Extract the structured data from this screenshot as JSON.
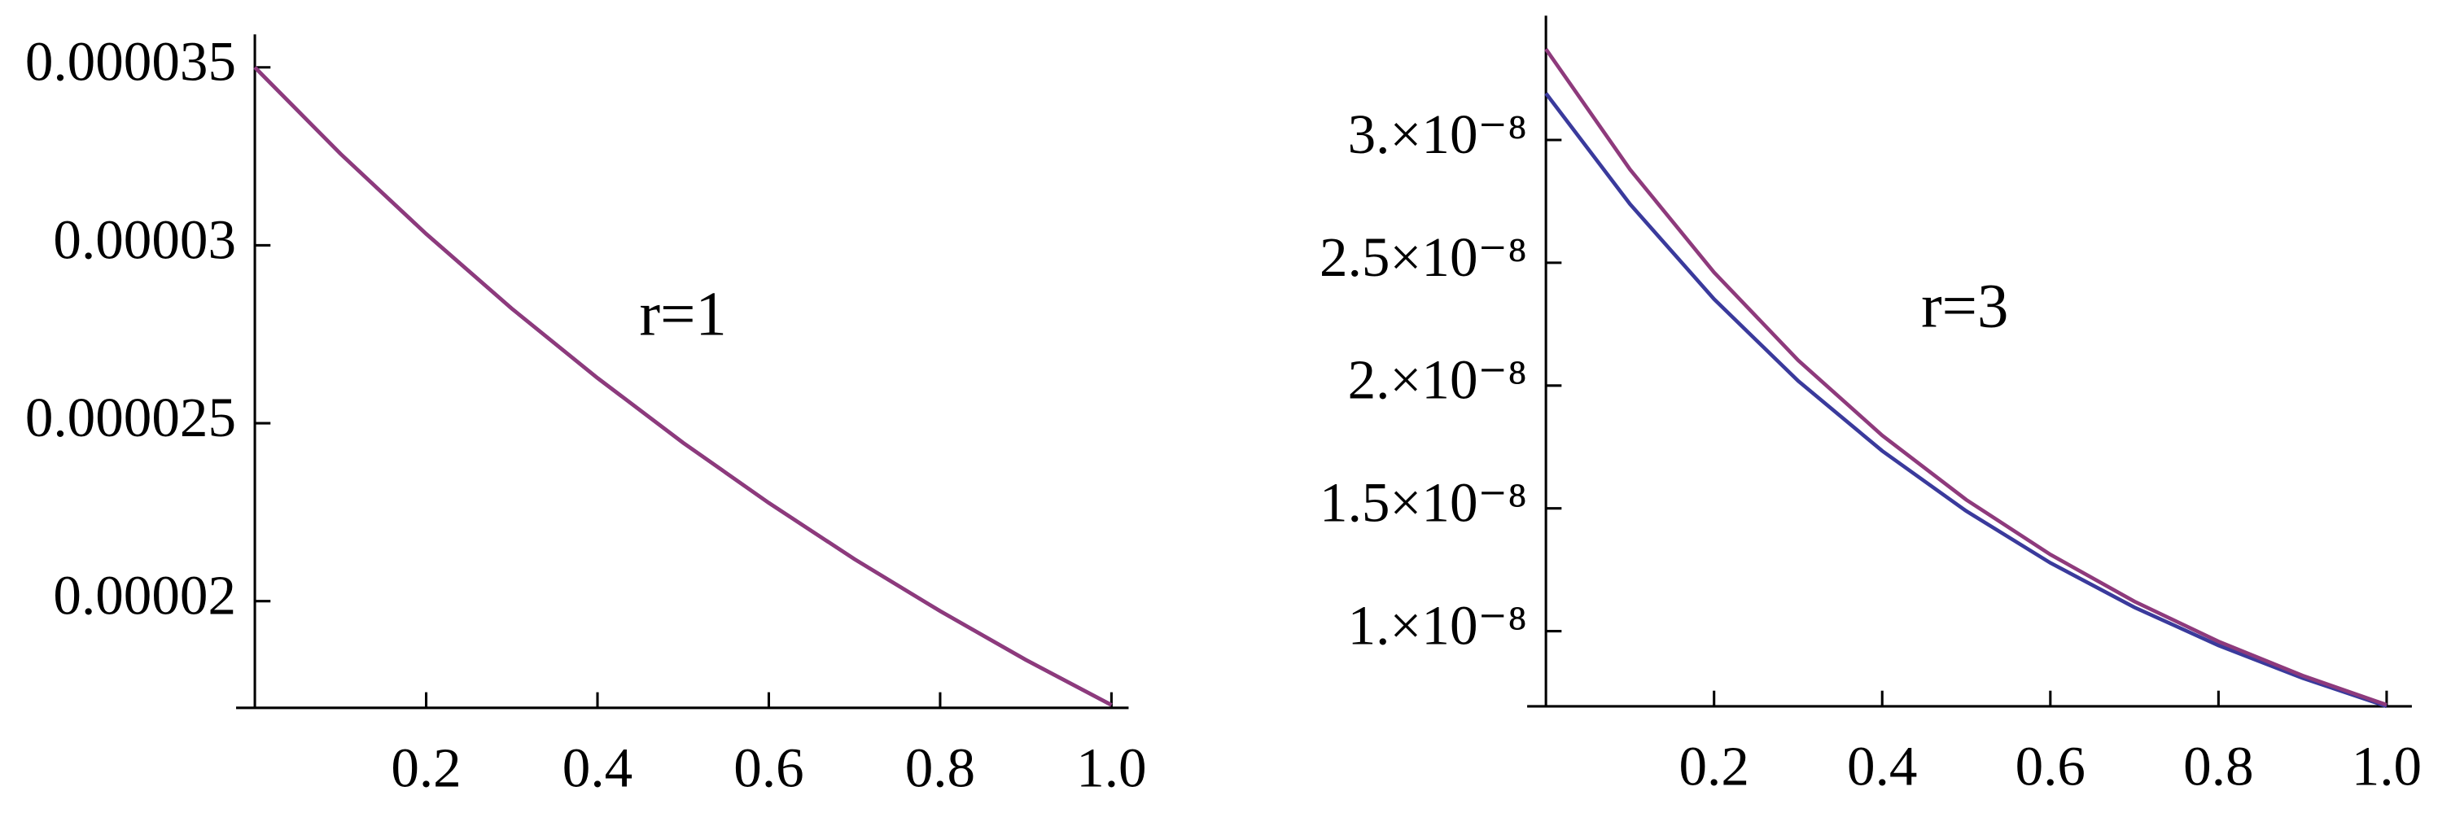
{
  "chart_data": [
    {
      "type": "line",
      "annotations": [
        "r=1"
      ],
      "x": [
        0,
        0.1,
        0.2,
        0.3,
        0.4,
        0.5,
        0.6,
        0.7,
        0.8,
        0.9,
        1.0
      ],
      "series": [
        {
          "color": "#3a3a9c",
          "values": [
            3.5e-05,
            3.257e-05,
            3.032e-05,
            2.822e-05,
            2.627e-05,
            2.445e-05,
            2.276e-05,
            2.118e-05,
            1.972e-05,
            1.835e-05,
            1.708e-05
          ]
        },
        {
          "color": "#8e3a7c",
          "values": [
            3.5e-05,
            3.257e-05,
            3.032e-05,
            2.822e-05,
            2.627e-05,
            2.445e-05,
            2.276e-05,
            2.118e-05,
            1.972e-05,
            1.835e-05,
            1.708e-05
          ]
        }
      ],
      "xlim": [
        0,
        1.02
      ],
      "xticks": [
        0.2,
        0.4,
        0.6,
        0.8,
        {
          "value": 1.0,
          "label": "1.0"
        }
      ],
      "ylim": [
        1.7e-05,
        3.54e-05
      ],
      "yticks": [
        2e-05,
        2.5e-05,
        3e-05,
        3.5e-05
      ]
    },
    {
      "type": "line",
      "annotations": [
        "r=3"
      ],
      "x": [
        0,
        0.1,
        0.2,
        0.3,
        0.4,
        0.5,
        0.6,
        0.7,
        0.8,
        0.9,
        1.0
      ],
      "series": [
        {
          "color": "#3a3a9c",
          "values": [
            3.19e-08,
            2.739e-08,
            2.352e-08,
            2.019e-08,
            1.734e-08,
            1.489e-08,
            1.278e-08,
            1.097e-08,
            9.42e-09,
            8.09e-09,
            6.94e-09
          ]
        },
        {
          "color": "#8e3a7c",
          "values": [
            3.37e-08,
            2.88e-08,
            2.461e-08,
            2.103e-08,
            1.797e-08,
            1.535e-08,
            1.312e-08,
            1.121e-08,
            9.58e-09,
            8.19e-09,
            7e-09
          ]
        }
      ],
      "xlim": [
        0,
        1.03
      ],
      "xticks": [
        0.2,
        0.4,
        0.6,
        0.8,
        {
          "value": 1.0,
          "label": "1.0"
        }
      ],
      "ylim": [
        6.94e-09,
        3.43e-08
      ],
      "yticks": [
        {
          "value": 1e-08,
          "label": "1.×10⁻⁸"
        },
        {
          "value": 1.5e-08,
          "label": "1.5×10⁻⁸"
        },
        {
          "value": 2e-08,
          "label": "2.×10⁻⁸"
        },
        {
          "value": 2.5e-08,
          "label": "2.5×10⁻⁸"
        },
        {
          "value": 3e-08,
          "label": "3.×10⁻⁸"
        }
      ]
    }
  ]
}
